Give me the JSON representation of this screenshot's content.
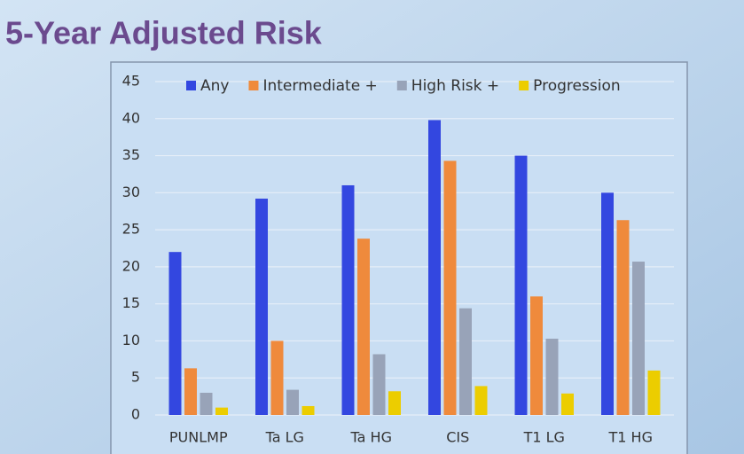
{
  "chart_data": {
    "type": "bar",
    "title": "5-Year Adjusted Risk",
    "categories": [
      "PUNLMP",
      "Ta LG",
      "Ta HG",
      "CIS",
      "T1 LG",
      "T1 HG"
    ],
    "series": [
      {
        "name": "Any",
        "color": "#3347e0",
        "values": [
          22,
          29.2,
          31,
          39.8,
          35,
          30
        ]
      },
      {
        "name": "Intermediate +",
        "color": "#ef8a3c",
        "values": [
          6.3,
          10,
          23.8,
          34.3,
          16,
          26.3
        ]
      },
      {
        "name": "High Risk +",
        "color": "#98a3b8",
        "values": [
          3,
          3.4,
          8.2,
          14.4,
          10.3,
          20.7
        ]
      },
      {
        "name": "Progression",
        "color": "#eccd00",
        "values": [
          1,
          1.2,
          3.2,
          3.9,
          2.9,
          6
        ]
      }
    ],
    "ylim": [
      0,
      45
    ],
    "yticks": [
      0,
      5,
      10,
      15,
      20,
      25,
      30,
      35,
      40,
      45
    ],
    "grid": true,
    "legend": "top"
  }
}
